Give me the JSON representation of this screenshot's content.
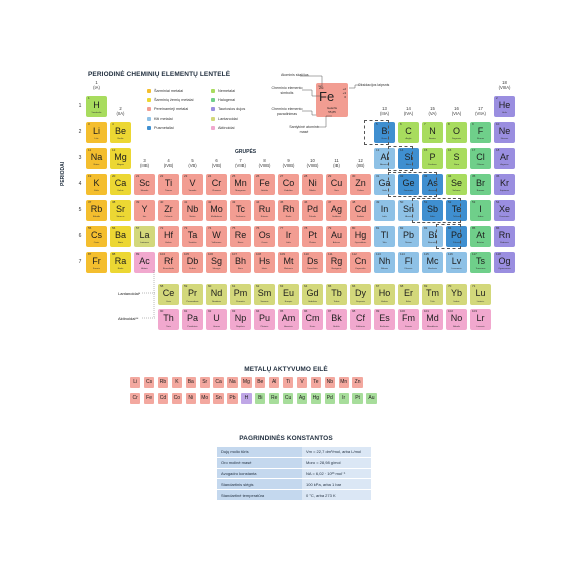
{
  "title": "PERIODINĖ CHEMINIŲ ELEMENTŲ LENTELĖ",
  "groups_label": "GRUPĖS",
  "periods_label": "PERIODAI",
  "series_lanthanides_label": "Lantanoidai*",
  "series_actinides_label": "Aktinoidai**",
  "key_box": {
    "number": "26",
    "symbol": "Fe",
    "name": "Geležis",
    "mass": "55,85",
    "oxidation": [
      "+2",
      "+3",
      "0"
    ],
    "labels": {
      "atomic_number": "Atominis skaičius",
      "oxidation": "Oksidacijos laipsnis",
      "symbol": "Cheminio elemento simbolis",
      "name": "Cheminio elemento pavadinimas",
      "mass": "Santykinė atominė masė"
    }
  },
  "legend": [
    {
      "label": "Šarminiai metalai",
      "color": "#f4be2e"
    },
    {
      "label": "Šarminių žemių metalai",
      "color": "#ecd733"
    },
    {
      "label": "Pereinamieji metalai",
      "color": "#f29d92"
    },
    {
      "label": "Kiti metalai",
      "color": "#8ec1e6"
    },
    {
      "label": "Pusmetaliai",
      "color": "#3f8fd0"
    },
    {
      "label": "Nemetalai",
      "color": "#a8dc5e"
    },
    {
      "label": "Halogenai",
      "color": "#6fcf8a"
    },
    {
      "label": "Tauriosios dujos",
      "color": "#9a8ee0"
    },
    {
      "label": "Lantanoidai",
      "color": "#d3d87b"
    },
    {
      "label": "Aktinoidai",
      "color": "#f1a8ce"
    }
  ],
  "group_labels": [
    {
      "n": "1",
      "r": "(IA)"
    },
    {
      "n": "2",
      "r": "(IIA)"
    },
    {
      "n": "3",
      "r": "(IIIB)"
    },
    {
      "n": "4",
      "r": "(IVB)"
    },
    {
      "n": "5",
      "r": "(VB)"
    },
    {
      "n": "6",
      "r": "(VIB)"
    },
    {
      "n": "7",
      "r": "(VIIB)"
    },
    {
      "n": "8",
      "r": "(VIIIB)"
    },
    {
      "n": "9",
      "r": "(VIIIB)"
    },
    {
      "n": "10",
      "r": "(VIIIB)"
    },
    {
      "n": "11",
      "r": "(IB)"
    },
    {
      "n": "12",
      "r": "(IIB)"
    },
    {
      "n": "13",
      "r": "(IIIA)"
    },
    {
      "n": "14",
      "r": "(IVA)"
    },
    {
      "n": "15",
      "r": "(VA)"
    },
    {
      "n": "16",
      "r": "(VIA)"
    },
    {
      "n": "17",
      "r": "(VIIA)"
    },
    {
      "n": "18",
      "r": "(VIIIA)"
    }
  ],
  "period_labels": [
    "1",
    "2",
    "3",
    "4",
    "5",
    "6",
    "7"
  ],
  "elements": [
    {
      "s": "H",
      "n": "1",
      "g": 1,
      "p": 1,
      "c": "#a8dc5e",
      "nm": "Vandenilis"
    },
    {
      "s": "He",
      "n": "2",
      "g": 18,
      "p": 1,
      "c": "#9a8ee0",
      "nm": "Helis"
    },
    {
      "s": "Li",
      "n": "3",
      "g": 1,
      "p": 2,
      "c": "#f4be2e",
      "nm": "Litis"
    },
    {
      "s": "Be",
      "n": "4",
      "g": 2,
      "p": 2,
      "c": "#ecd733",
      "nm": "Berilis"
    },
    {
      "s": "B",
      "n": "5",
      "g": 13,
      "p": 2,
      "c": "#3f8fd0",
      "nm": "Boras"
    },
    {
      "s": "C",
      "n": "6",
      "g": 14,
      "p": 2,
      "c": "#a8dc5e",
      "nm": "Anglis"
    },
    {
      "s": "N",
      "n": "7",
      "g": 15,
      "p": 2,
      "c": "#a8dc5e",
      "nm": "Azotas"
    },
    {
      "s": "O",
      "n": "8",
      "g": 16,
      "p": 2,
      "c": "#a8dc5e",
      "nm": "Deguonis"
    },
    {
      "s": "F",
      "n": "9",
      "g": 17,
      "p": 2,
      "c": "#6fcf8a",
      "nm": "Fluoras"
    },
    {
      "s": "Ne",
      "n": "10",
      "g": 18,
      "p": 2,
      "c": "#9a8ee0",
      "nm": "Neonas"
    },
    {
      "s": "Na",
      "n": "11",
      "g": 1,
      "p": 3,
      "c": "#f4be2e",
      "nm": "Natris"
    },
    {
      "s": "Mg",
      "n": "12",
      "g": 2,
      "p": 3,
      "c": "#ecd733",
      "nm": "Magnis"
    },
    {
      "s": "Al",
      "n": "13",
      "g": 13,
      "p": 3,
      "c": "#8ec1e6",
      "nm": "Aliuminis"
    },
    {
      "s": "Si",
      "n": "14",
      "g": 14,
      "p": 3,
      "c": "#3f8fd0",
      "nm": "Silicis"
    },
    {
      "s": "P",
      "n": "15",
      "g": 15,
      "p": 3,
      "c": "#a8dc5e",
      "nm": "Fosforas"
    },
    {
      "s": "S",
      "n": "16",
      "g": 16,
      "p": 3,
      "c": "#a8dc5e",
      "nm": "Siera"
    },
    {
      "s": "Cl",
      "n": "17",
      "g": 17,
      "p": 3,
      "c": "#6fcf8a",
      "nm": "Chloras"
    },
    {
      "s": "Ar",
      "n": "18",
      "g": 18,
      "p": 3,
      "c": "#9a8ee0",
      "nm": "Argonas"
    },
    {
      "s": "K",
      "n": "19",
      "g": 1,
      "p": 4,
      "c": "#f4be2e",
      "nm": "Kalis"
    },
    {
      "s": "Ca",
      "n": "20",
      "g": 2,
      "p": 4,
      "c": "#ecd733",
      "nm": "Kalcis"
    },
    {
      "s": "Sc",
      "n": "21",
      "g": 3,
      "p": 4,
      "c": "#f29d92",
      "nm": "Skandis"
    },
    {
      "s": "Ti",
      "n": "22",
      "g": 4,
      "p": 4,
      "c": "#f29d92",
      "nm": "Titanas"
    },
    {
      "s": "V",
      "n": "23",
      "g": 5,
      "p": 4,
      "c": "#f29d92",
      "nm": "Vanadis"
    },
    {
      "s": "Cr",
      "n": "24",
      "g": 6,
      "p": 4,
      "c": "#f29d92",
      "nm": "Chromas"
    },
    {
      "s": "Mn",
      "n": "25",
      "g": 7,
      "p": 4,
      "c": "#f29d92",
      "nm": "Manganas"
    },
    {
      "s": "Fe",
      "n": "26",
      "g": 8,
      "p": 4,
      "c": "#f29d92",
      "nm": "Geležis"
    },
    {
      "s": "Co",
      "n": "27",
      "g": 9,
      "p": 4,
      "c": "#f29d92",
      "nm": "Kobaltas"
    },
    {
      "s": "Ni",
      "n": "28",
      "g": 10,
      "p": 4,
      "c": "#f29d92",
      "nm": "Nikelis"
    },
    {
      "s": "Cu",
      "n": "29",
      "g": 11,
      "p": 4,
      "c": "#f29d92",
      "nm": "Varis"
    },
    {
      "s": "Zn",
      "n": "30",
      "g": 12,
      "p": 4,
      "c": "#f29d92",
      "nm": "Cinkas"
    },
    {
      "s": "Ga",
      "n": "31",
      "g": 13,
      "p": 4,
      "c": "#8ec1e6",
      "nm": "Galis"
    },
    {
      "s": "Ge",
      "n": "32",
      "g": 14,
      "p": 4,
      "c": "#3f8fd0",
      "nm": "Germanis"
    },
    {
      "s": "As",
      "n": "33",
      "g": 15,
      "p": 4,
      "c": "#3f8fd0",
      "nm": "Arsenas"
    },
    {
      "s": "Se",
      "n": "34",
      "g": 16,
      "p": 4,
      "c": "#a8dc5e",
      "nm": "Selenas"
    },
    {
      "s": "Br",
      "n": "35",
      "g": 17,
      "p": 4,
      "c": "#6fcf8a",
      "nm": "Bromas"
    },
    {
      "s": "Kr",
      "n": "36",
      "g": 18,
      "p": 4,
      "c": "#9a8ee0",
      "nm": "Kriptonas"
    },
    {
      "s": "Rb",
      "n": "37",
      "g": 1,
      "p": 5,
      "c": "#f4be2e",
      "nm": "Rubidis"
    },
    {
      "s": "Sr",
      "n": "38",
      "g": 2,
      "p": 5,
      "c": "#ecd733",
      "nm": "Stroncis"
    },
    {
      "s": "Y",
      "n": "39",
      "g": 3,
      "p": 5,
      "c": "#f29d92",
      "nm": "Itris"
    },
    {
      "s": "Zr",
      "n": "40",
      "g": 4,
      "p": 5,
      "c": "#f29d92",
      "nm": "Cirkonis"
    },
    {
      "s": "Nb",
      "n": "41",
      "g": 5,
      "p": 5,
      "c": "#f29d92",
      "nm": "Niobis"
    },
    {
      "s": "Mo",
      "n": "42",
      "g": 6,
      "p": 5,
      "c": "#f29d92",
      "nm": "Molibdenas"
    },
    {
      "s": "Tc",
      "n": "43",
      "g": 7,
      "p": 5,
      "c": "#f29d92",
      "nm": "Technecis"
    },
    {
      "s": "Ru",
      "n": "44",
      "g": 8,
      "p": 5,
      "c": "#f29d92",
      "nm": "Rutenis"
    },
    {
      "s": "Rh",
      "n": "45",
      "g": 9,
      "p": 5,
      "c": "#f29d92",
      "nm": "Rodis"
    },
    {
      "s": "Pd",
      "n": "46",
      "g": 10,
      "p": 5,
      "c": "#f29d92",
      "nm": "Paladis"
    },
    {
      "s": "Ag",
      "n": "47",
      "g": 11,
      "p": 5,
      "c": "#f29d92",
      "nm": "Sidabras"
    },
    {
      "s": "Cd",
      "n": "48",
      "g": 12,
      "p": 5,
      "c": "#f29d92",
      "nm": "Kadmis"
    },
    {
      "s": "In",
      "n": "49",
      "g": 13,
      "p": 5,
      "c": "#8ec1e6",
      "nm": "Indis"
    },
    {
      "s": "Sn",
      "n": "50",
      "g": 14,
      "p": 5,
      "c": "#8ec1e6",
      "nm": "Alavas"
    },
    {
      "s": "Sb",
      "n": "51",
      "g": 15,
      "p": 5,
      "c": "#3f8fd0",
      "nm": "Stibis"
    },
    {
      "s": "Te",
      "n": "52",
      "g": 16,
      "p": 5,
      "c": "#3f8fd0",
      "nm": "Telūras"
    },
    {
      "s": "I",
      "n": "53",
      "g": 17,
      "p": 5,
      "c": "#6fcf8a",
      "nm": "Jodas"
    },
    {
      "s": "Xe",
      "n": "54",
      "g": 18,
      "p": 5,
      "c": "#9a8ee0",
      "nm": "Ksenonas"
    },
    {
      "s": "Cs",
      "n": "55",
      "g": 1,
      "p": 6,
      "c": "#f4be2e",
      "nm": "Cezis"
    },
    {
      "s": "Ba",
      "n": "56",
      "g": 2,
      "p": 6,
      "c": "#ecd733",
      "nm": "Baris"
    },
    {
      "s": "La",
      "n": "57",
      "g": 3,
      "p": 6,
      "c": "#d3d87b",
      "nm": "Lantanas"
    },
    {
      "s": "Hf",
      "n": "72",
      "g": 4,
      "p": 6,
      "c": "#f29d92",
      "nm": "Hafnis"
    },
    {
      "s": "Ta",
      "n": "73",
      "g": 5,
      "p": 6,
      "c": "#f29d92",
      "nm": "Tantalas"
    },
    {
      "s": "W",
      "n": "74",
      "g": 6,
      "p": 6,
      "c": "#f29d92",
      "nm": "Volframas"
    },
    {
      "s": "Re",
      "n": "75",
      "g": 7,
      "p": 6,
      "c": "#f29d92",
      "nm": "Renis"
    },
    {
      "s": "Os",
      "n": "76",
      "g": 8,
      "p": 6,
      "c": "#f29d92",
      "nm": "Osmis"
    },
    {
      "s": "Ir",
      "n": "77",
      "g": 9,
      "p": 6,
      "c": "#f29d92",
      "nm": "Iridis"
    },
    {
      "s": "Pt",
      "n": "78",
      "g": 10,
      "p": 6,
      "c": "#f29d92",
      "nm": "Platina"
    },
    {
      "s": "Au",
      "n": "79",
      "g": 11,
      "p": 6,
      "c": "#f29d92",
      "nm": "Auksas"
    },
    {
      "s": "Hg",
      "n": "80",
      "g": 12,
      "p": 6,
      "c": "#f29d92",
      "nm": "Gyvsidabris"
    },
    {
      "s": "Tl",
      "n": "81",
      "g": 13,
      "p": 6,
      "c": "#8ec1e6",
      "nm": "Talis"
    },
    {
      "s": "Pb",
      "n": "82",
      "g": 14,
      "p": 6,
      "c": "#8ec1e6",
      "nm": "Švinas"
    },
    {
      "s": "Bi",
      "n": "83",
      "g": 15,
      "p": 6,
      "c": "#8ec1e6",
      "nm": "Bismutas"
    },
    {
      "s": "Po",
      "n": "84",
      "g": 16,
      "p": 6,
      "c": "#3f8fd0",
      "nm": "Polonis"
    },
    {
      "s": "At",
      "n": "85",
      "g": 17,
      "p": 6,
      "c": "#6fcf8a",
      "nm": "Astatas"
    },
    {
      "s": "Rn",
      "n": "86",
      "g": 18,
      "p": 6,
      "c": "#9a8ee0",
      "nm": "Radonas"
    },
    {
      "s": "Fr",
      "n": "87",
      "g": 1,
      "p": 7,
      "c": "#f4be2e",
      "nm": "Francis"
    },
    {
      "s": "Ra",
      "n": "88",
      "g": 2,
      "p": 7,
      "c": "#ecd733",
      "nm": "Radis"
    },
    {
      "s": "Ac",
      "n": "89",
      "g": 3,
      "p": 7,
      "c": "#f1a8ce",
      "nm": "Aktinis"
    },
    {
      "s": "Rf",
      "n": "104",
      "g": 4,
      "p": 7,
      "c": "#f29d92",
      "nm": "Rezerfordis"
    },
    {
      "s": "Db",
      "n": "105",
      "g": 5,
      "p": 7,
      "c": "#f29d92",
      "nm": "Dubnis"
    },
    {
      "s": "Sg",
      "n": "106",
      "g": 6,
      "p": 7,
      "c": "#f29d92",
      "nm": "Siborgis"
    },
    {
      "s": "Bh",
      "n": "107",
      "g": 7,
      "p": 7,
      "c": "#f29d92",
      "nm": "Boris"
    },
    {
      "s": "Hs",
      "n": "108",
      "g": 8,
      "p": 7,
      "c": "#f29d92",
      "nm": "Hasis"
    },
    {
      "s": "Mt",
      "n": "109",
      "g": 9,
      "p": 7,
      "c": "#f29d92",
      "nm": "Meitneris"
    },
    {
      "s": "Ds",
      "n": "110",
      "g": 10,
      "p": 7,
      "c": "#f29d92",
      "nm": "Darmštatis"
    },
    {
      "s": "Rg",
      "n": "111",
      "g": 11,
      "p": 7,
      "c": "#f29d92",
      "nm": "Rentgenis"
    },
    {
      "s": "Cn",
      "n": "112",
      "g": 12,
      "p": 7,
      "c": "#f29d92",
      "nm": "Kopernikis"
    },
    {
      "s": "Nh",
      "n": "113",
      "g": 13,
      "p": 7,
      "c": "#8ec1e6",
      "nm": "Nihonis"
    },
    {
      "s": "Fl",
      "n": "114",
      "g": 14,
      "p": 7,
      "c": "#8ec1e6",
      "nm": "Flerovis"
    },
    {
      "s": "Mc",
      "n": "115",
      "g": 15,
      "p": 7,
      "c": "#8ec1e6",
      "nm": "Moskovis"
    },
    {
      "s": "Lv",
      "n": "116",
      "g": 16,
      "p": 7,
      "c": "#8ec1e6",
      "nm": "Livermoris"
    },
    {
      "s": "Ts",
      "n": "117",
      "g": 17,
      "p": 7,
      "c": "#6fcf8a",
      "nm": "Tenesinas"
    },
    {
      "s": "Og",
      "n": "118",
      "g": 18,
      "p": 7,
      "c": "#9a8ee0",
      "nm": "Oganesonas"
    }
  ],
  "lanthanides": [
    {
      "s": "Ce",
      "n": "58",
      "nm": "Ceris"
    },
    {
      "s": "Pr",
      "n": "59",
      "nm": "Prazeodimis"
    },
    {
      "s": "Nd",
      "n": "60",
      "nm": "Neodimis"
    },
    {
      "s": "Pm",
      "n": "61",
      "nm": "Prometis"
    },
    {
      "s": "Sm",
      "n": "62",
      "nm": "Samaris"
    },
    {
      "s": "Eu",
      "n": "63",
      "nm": "Europis"
    },
    {
      "s": "Gd",
      "n": "64",
      "nm": "Gadolinis"
    },
    {
      "s": "Tb",
      "n": "65",
      "nm": "Terbis"
    },
    {
      "s": "Dy",
      "n": "66",
      "nm": "Disprozis"
    },
    {
      "s": "Ho",
      "n": "67",
      "nm": "Holmis"
    },
    {
      "s": "Er",
      "n": "68",
      "nm": "Erbis"
    },
    {
      "s": "Tm",
      "n": "69",
      "nm": "Tulis"
    },
    {
      "s": "Yb",
      "n": "70",
      "nm": "Iterbis"
    },
    {
      "s": "Lu",
      "n": "71",
      "nm": "Liutecis"
    }
  ],
  "actinides": [
    {
      "s": "Th",
      "n": "90",
      "nm": "Toris"
    },
    {
      "s": "Pa",
      "n": "91",
      "nm": "Protaktinis"
    },
    {
      "s": "U",
      "n": "92",
      "nm": "Uranas"
    },
    {
      "s": "Np",
      "n": "93",
      "nm": "Neptūnis"
    },
    {
      "s": "Pu",
      "n": "94",
      "nm": "Plutonis"
    },
    {
      "s": "Am",
      "n": "95",
      "nm": "Americis"
    },
    {
      "s": "Cm",
      "n": "96",
      "nm": "Kiuris"
    },
    {
      "s": "Bk",
      "n": "97",
      "nm": "Berklis"
    },
    {
      "s": "Cf",
      "n": "98",
      "nm": "Kalifornis"
    },
    {
      "s": "Es",
      "n": "99",
      "nm": "Einšteinis"
    },
    {
      "s": "Fm",
      "n": "100",
      "nm": "Fermis"
    },
    {
      "s": "Md",
      "n": "101",
      "nm": "Mendelevis"
    },
    {
      "s": "No",
      "n": "102",
      "nm": "Nobelis"
    },
    {
      "s": "Lr",
      "n": "103",
      "nm": "Lorensis"
    }
  ],
  "series_colors": {
    "lanthanide": "#d3d87b",
    "actinide": "#f1a8ce"
  },
  "activity": {
    "title": "METALŲ AKTYVUMO EILĖ",
    "row1": [
      "Li",
      "Cs",
      "Rb",
      "K",
      "Ba",
      "Sr",
      "Ca",
      "Na",
      "Mg",
      "Be",
      "Al",
      "Ti",
      "V",
      "Te",
      "Nb",
      "Mn",
      "Zn"
    ],
    "row2": [
      "Cr",
      "Fe",
      "Cd",
      "Co",
      "Ni",
      "Mo",
      "Sn",
      "Pb",
      "H",
      "Bi",
      "Re",
      "Cu",
      "Ag",
      "Hg",
      "Pd",
      "Ir",
      "Pt",
      "Au"
    ],
    "h_color": "#bfa6e6",
    "metal_color": "#f3a89f",
    "noble_color": "#a7dd9b"
  },
  "constants": {
    "title": "PAGRINDINĖS KONSTANTOS",
    "rows": [
      {
        "k": "Dujų molio tūris",
        "v": "Vm = 22,7 dm³/mol, arba L/mol"
      },
      {
        "k": "Oro molinė masė",
        "v": "Mоro = 28,98 g/mol"
      },
      {
        "k": "Avogadro konstanta",
        "v": "NA = 6,02 · 10²³ mol⁻¹"
      },
      {
        "k": "Standartinis slėgis",
        "v": "100 kPa, arba 1 bar"
      },
      {
        "k": "Standartinė temperatūra",
        "v": "0 °C, arba 273 K"
      }
    ]
  }
}
